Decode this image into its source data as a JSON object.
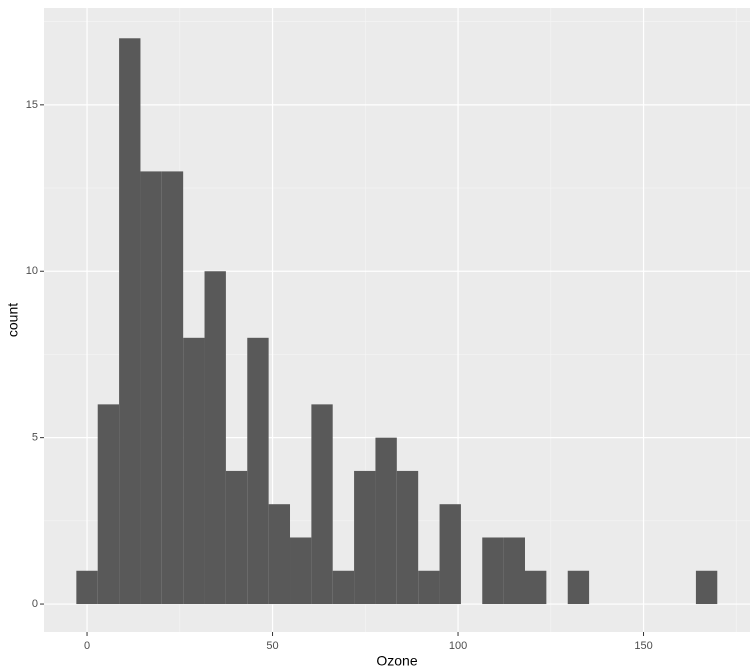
{
  "chart_data": {
    "type": "histogram",
    "x_label": "Ozone",
    "y_label": "count",
    "bins": [
      -2.88,
      2.88,
      8.64,
      14.4,
      20.15,
      25.91,
      31.67,
      37.43,
      43.19,
      48.95,
      54.71,
      60.47,
      66.22,
      71.98,
      77.74,
      83.5,
      89.26,
      95.02,
      100.78,
      106.53,
      112.29,
      118.05,
      123.81,
      129.57,
      135.33,
      141.09,
      146.84,
      152.6,
      158.36,
      164.12,
      169.88
    ],
    "values": [
      1,
      6,
      17,
      13,
      13,
      8,
      10,
      4,
      8,
      3,
      2,
      6,
      1,
      4,
      5,
      4,
      1,
      3,
      0,
      2,
      2,
      1,
      0,
      1,
      0,
      0,
      0,
      0,
      0,
      1
    ],
    "color": "#595959",
    "xlim": [
      -11.6,
      178.7
    ],
    "xticks": [
      0,
      50,
      100,
      150
    ],
    "minor_xticks": [
      25,
      75,
      125,
      175
    ],
    "ylim": [
      -0.84,
      17.91
    ],
    "yticks": [
      0,
      5,
      10,
      15
    ],
    "minor_yticks": [
      2.5,
      7.5,
      12.5,
      17.5
    ],
    "grid": true,
    "panel_color": "#ebebeb"
  }
}
